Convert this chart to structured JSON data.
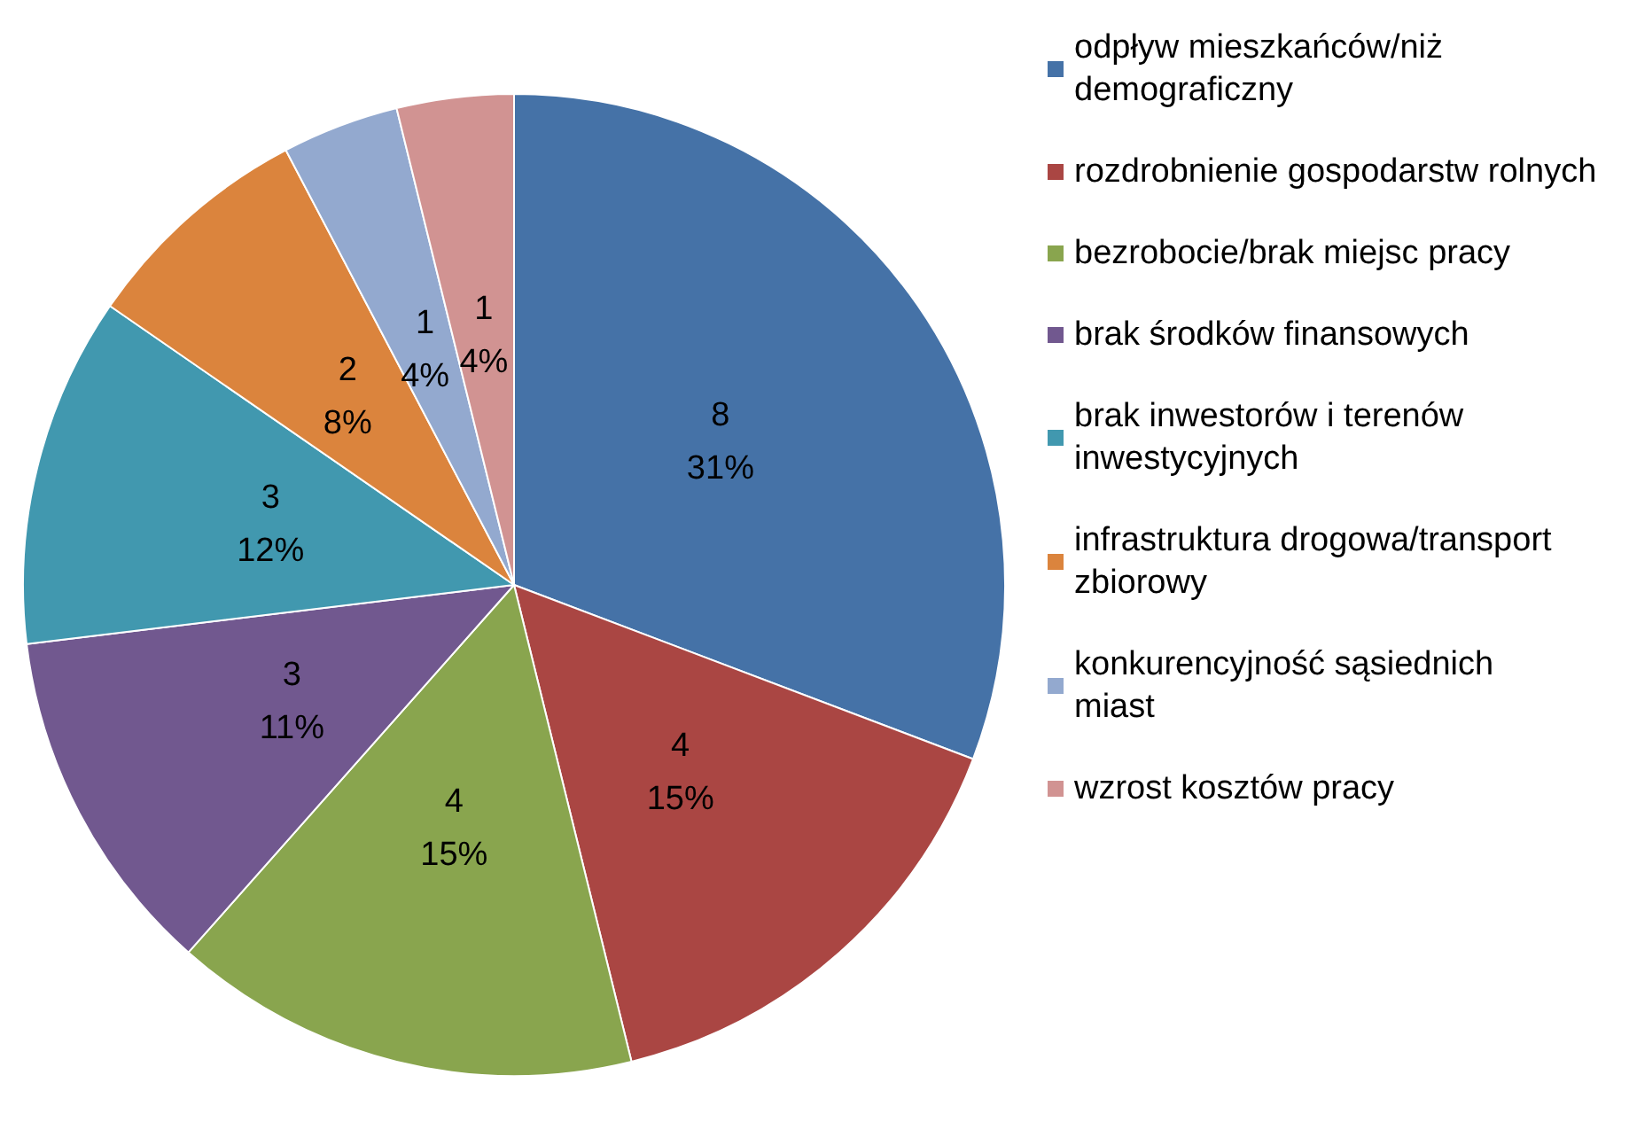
{
  "chart_data": {
    "type": "pie",
    "categories": [
      "odpływ mieszkańców/niż demograficzny",
      "rozdrobnienie gospodarstw rolnych",
      "bezrobocie/brak miejsc pracy",
      "brak środków finansowych",
      "brak inwestorów i terenów inwestycyjnych",
      "infrastruktura drogowa/transport zbiorowy",
      "konkurencyjność sąsiednich miast",
      "wzrost kosztów pracy"
    ],
    "values": [
      8,
      4,
      4,
      3,
      3,
      2,
      1,
      1
    ],
    "colors": [
      "#4572a7",
      "#aa4643",
      "#89a54e",
      "#71588f",
      "#4198af",
      "#db843d",
      "#93a9cf",
      "#d19392"
    ],
    "value_labels": [
      "8\n31%",
      "4\n15%",
      "4\n15%",
      "3\n11%",
      "3\n12%",
      "2\n8%",
      "1\n4%",
      "1\n4%"
    ],
    "legend": "right"
  }
}
